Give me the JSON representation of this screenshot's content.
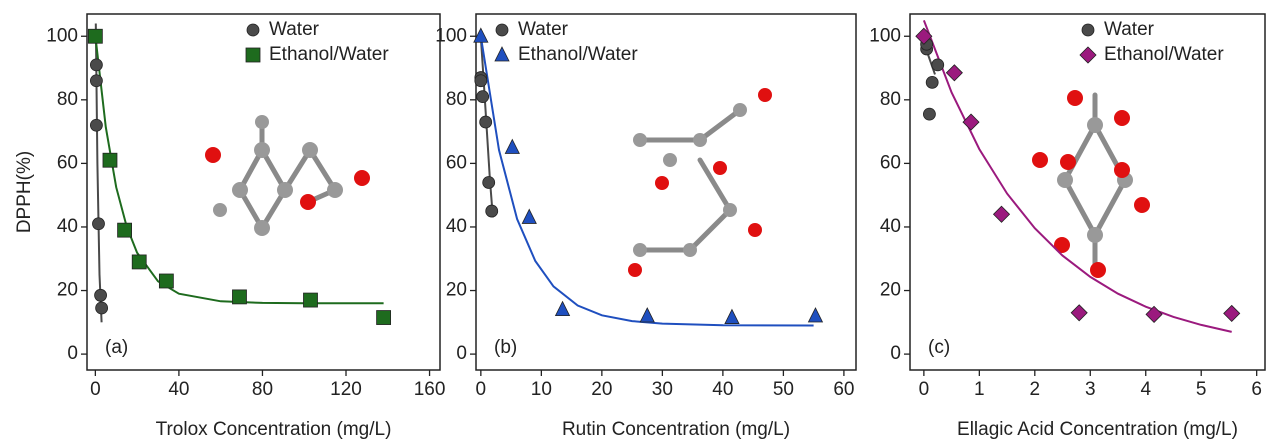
{
  "chart_data": [
    {
      "type": "scatter",
      "xlabel": "Trolox Concentration (mg/L)",
      "ylabel": "DPPH(%)",
      "annotation": "(a)",
      "xlim": [
        -4,
        165
      ],
      "ylim": [
        -5,
        107
      ],
      "xticks": [
        0,
        40,
        80,
        120,
        160
      ],
      "yticks": [
        0,
        20,
        40,
        60,
        80,
        100
      ],
      "legend": "upper right",
      "series": [
        {
          "name": "Water",
          "color": "#4a4a4a",
          "marker": "circle",
          "x": [
            0.5,
            0.5,
            0.5,
            1.5,
            2.5,
            3
          ],
          "values": [
            91,
            86,
            72,
            41,
            18.5,
            14.5
          ]
        },
        {
          "name": "Ethanol/Water",
          "color": "#1e6b1e",
          "marker": "square",
          "x": [
            0,
            7,
            14,
            21,
            34,
            69,
            103,
            138
          ],
          "values": [
            100,
            61,
            39,
            29,
            23,
            18,
            17,
            11.5
          ]
        }
      ],
      "fits": [
        {
          "color": "#4a4a4a",
          "x": [
            0.2,
            1,
            2,
            3
          ],
          "values": [
            104,
            60,
            25,
            10
          ]
        },
        {
          "color": "#1e6b1e",
          "x": [
            0,
            5,
            10,
            15,
            20,
            30,
            40,
            60,
            80,
            100,
            120,
            138
          ],
          "values": [
            100,
            71.4,
            52.5,
            40.1,
            31.9,
            22.9,
            19,
            16.6,
            16.1,
            16,
            16,
            16
          ]
        }
      ]
    },
    {
      "type": "scatter",
      "xlabel": "Rutin Concentration (mg/L)",
      "annotation": "(b)",
      "xlim": [
        -0.8,
        62
      ],
      "ylim": [
        -5,
        107
      ],
      "xticks": [
        0,
        10,
        20,
        30,
        40,
        50,
        60
      ],
      "yticks": [
        0,
        20,
        40,
        60,
        80,
        100
      ],
      "legend": "upper right",
      "series": [
        {
          "name": "Water",
          "color": "#4a4a4a",
          "marker": "circle",
          "x": [
            0,
            0,
            0.3,
            0.8,
            1.3,
            1.8
          ],
          "values": [
            87,
            86,
            81,
            73,
            54,
            45
          ]
        },
        {
          "name": "Ethanol/Water",
          "color": "#1f4fbf",
          "marker": "triangle",
          "x": [
            0,
            5.2,
            8,
            13.5,
            27.5,
            41.5,
            55.3
          ],
          "values": [
            100,
            65,
            43,
            14,
            12,
            11.5,
            12
          ]
        }
      ],
      "fits": [
        {
          "color": "#4a4a4a",
          "x": [
            0,
            0.5,
            1,
            1.5,
            2
          ],
          "values": [
            100,
            85,
            70,
            55,
            43
          ]
        },
        {
          "color": "#1f4fbf",
          "x": [
            0,
            3,
            6,
            9,
            12,
            16,
            20,
            25,
            30,
            40,
            55
          ],
          "values": [
            100,
            64.2,
            42.5,
            29.3,
            21.3,
            15.3,
            12.2,
            10.4,
            9.6,
            9.1,
            9
          ]
        }
      ]
    },
    {
      "type": "scatter",
      "xlabel": "Ellagic Acid Concentration (mg/L)",
      "annotation": "(c)",
      "xlim": [
        -0.25,
        6.15
      ],
      "ylim": [
        -5,
        107
      ],
      "xticks": [
        0,
        1,
        2,
        3,
        4,
        5,
        6
      ],
      "yticks": [
        0,
        20,
        40,
        60,
        80,
        100
      ],
      "legend": "upper right",
      "series": [
        {
          "name": "Water",
          "color": "#4a4a4a",
          "marker": "circle",
          "x": [
            0.05,
            0.05,
            0.15,
            0.25,
            0.1
          ],
          "values": [
            96,
            97.5,
            85.5,
            91,
            75.5
          ]
        },
        {
          "name": "Ethanol/Water",
          "color": "#9b1a7e",
          "marker": "diamond",
          "x": [
            0,
            0.55,
            0.85,
            1.4,
            2.8,
            4.15,
            5.55
          ],
          "values": [
            100,
            88.5,
            73,
            44,
            13,
            12.5,
            12.8
          ]
        }
      ],
      "fits": [
        {
          "color": "#4a4a4a",
          "x": [
            0,
            0.1,
            0.2
          ],
          "values": [
            98,
            93,
            88
          ]
        },
        {
          "color": "#9b1a7e",
          "x": [
            0,
            0.5,
            1,
            1.5,
            2,
            2.5,
            3,
            3.5,
            4,
            4.5,
            5,
            5.55
          ],
          "values": [
            105,
            82.3,
            64.5,
            50.5,
            39.6,
            31,
            24.3,
            19,
            14.9,
            11.7,
            9.2,
            7
          ]
        }
      ]
    }
  ]
}
